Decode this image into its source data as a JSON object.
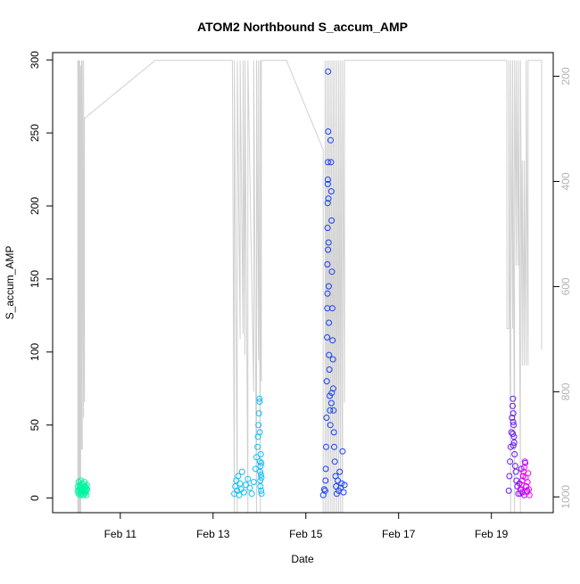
{
  "chart_data": {
    "type": "scatter",
    "title": "ATOM2 Northbound S_accum_AMP",
    "xlabel": "Date",
    "ylabel": "S_accum_AMP",
    "xlim": [
      "2018-02-09T13:00",
      "2018-02-20T08:00"
    ],
    "ylim": [
      -10,
      305
    ],
    "x_ticks": [
      {
        "date": "2018-02-11",
        "label": "Feb 11"
      },
      {
        "date": "2018-02-13",
        "label": "Feb 13"
      },
      {
        "date": "2018-02-15",
        "label": "Feb 15"
      },
      {
        "date": "2018-02-17",
        "label": "Feb 17"
      },
      {
        "date": "2018-02-19",
        "label": "Feb 19"
      }
    ],
    "y_ticks": [
      0,
      50,
      100,
      150,
      200,
      250,
      300
    ],
    "secondary_y": {
      "reversed": true,
      "ylim": [
        1030,
        155
      ],
      "ticks": [
        200,
        400,
        600,
        800,
        1000
      ],
      "color": "#bfbfbf"
    },
    "grid": false,
    "legend": "none",
    "series": [
      {
        "color": "#00f5a0",
        "points": [
          [
            "2018-02-10T02:00",
            5
          ],
          [
            "2018-02-10T02:10",
            8
          ],
          [
            "2018-02-10T02:20",
            3
          ],
          [
            "2018-02-10T02:30",
            11
          ],
          [
            "2018-02-10T02:40",
            6
          ],
          [
            "2018-02-10T02:50",
            4
          ],
          [
            "2018-02-10T03:00",
            9
          ],
          [
            "2018-02-10T03:10",
            7
          ],
          [
            "2018-02-10T03:20",
            2
          ],
          [
            "2018-02-10T03:30",
            12
          ],
          [
            "2018-02-10T03:40",
            5
          ],
          [
            "2018-02-10T03:50",
            8
          ],
          [
            "2018-02-10T04:00",
            3
          ],
          [
            "2018-02-10T04:10",
            6
          ],
          [
            "2018-02-10T04:20",
            10
          ],
          [
            "2018-02-10T04:30",
            4
          ],
          [
            "2018-02-10T04:40",
            7
          ],
          [
            "2018-02-10T04:50",
            2
          ],
          [
            "2018-02-10T05:00",
            9
          ],
          [
            "2018-02-10T05:10",
            5
          ],
          [
            "2018-02-10T05:20",
            6
          ],
          [
            "2018-02-10T05:30",
            11
          ],
          [
            "2018-02-10T05:40",
            3
          ],
          [
            "2018-02-10T05:50",
            8
          ],
          [
            "2018-02-10T06:00",
            4
          ],
          [
            "2018-02-10T06:10",
            7
          ],
          [
            "2018-02-10T06:20",
            5
          ],
          [
            "2018-02-10T06:30",
            2
          ],
          [
            "2018-02-10T06:40",
            9
          ],
          [
            "2018-02-10T06:50",
            6
          ]
        ]
      },
      {
        "color": "#11bff5",
        "points": [
          [
            "2018-02-13T11:00",
            3
          ],
          [
            "2018-02-13T11:30",
            8
          ],
          [
            "2018-02-13T12:00",
            12
          ],
          [
            "2018-02-13T12:30",
            5
          ],
          [
            "2018-02-13T13:00",
            15
          ],
          [
            "2018-02-13T13:30",
            2
          ],
          [
            "2018-02-13T14:00",
            10
          ],
          [
            "2018-02-13T14:30",
            6
          ],
          [
            "2018-02-13T15:00",
            18
          ],
          [
            "2018-02-13T16:00",
            4
          ],
          [
            "2018-02-13T17:00",
            9
          ],
          [
            "2018-02-13T18:00",
            13
          ],
          [
            "2018-02-13T19:00",
            7
          ],
          [
            "2018-02-13T20:00",
            3
          ],
          [
            "2018-02-13T21:00",
            11
          ],
          [
            "2018-02-13T22:00",
            20
          ],
          [
            "2018-02-13T22:30",
            28
          ],
          [
            "2018-02-13T23:00",
            35
          ],
          [
            "2018-02-13T23:15",
            42
          ],
          [
            "2018-02-13T23:30",
            50
          ],
          [
            "2018-02-13T23:45",
            58
          ],
          [
            "2018-02-14T00:00",
            68
          ],
          [
            "2018-02-14T00:05",
            66
          ],
          [
            "2018-02-14T00:10",
            45
          ],
          [
            "2018-02-14T00:15",
            25
          ],
          [
            "2018-02-14T00:20",
            18
          ],
          [
            "2018-02-14T00:25",
            12
          ],
          [
            "2018-02-14T00:30",
            8
          ],
          [
            "2018-02-14T00:35",
            22
          ],
          [
            "2018-02-14T00:40",
            30
          ],
          [
            "2018-02-14T00:45",
            16
          ],
          [
            "2018-02-14T00:50",
            5
          ],
          [
            "2018-02-14T00:55",
            24
          ],
          [
            "2018-02-14T01:00",
            14
          ],
          [
            "2018-02-14T01:05",
            3
          ]
        ]
      },
      {
        "color": "#1a40f5",
        "points": [
          [
            "2018-02-15T10:00",
            5
          ],
          [
            "2018-02-15T10:10",
            12
          ],
          [
            "2018-02-15T10:20",
            20
          ],
          [
            "2018-02-15T10:30",
            35
          ],
          [
            "2018-02-15T10:40",
            55
          ],
          [
            "2018-02-15T10:50",
            80
          ],
          [
            "2018-02-15T11:00",
            110
          ],
          [
            "2018-02-15T11:05",
            130
          ],
          [
            "2018-02-15T11:10",
            160
          ],
          [
            "2018-02-15T11:15",
            185
          ],
          [
            "2018-02-15T11:20",
            215
          ],
          [
            "2018-02-15T11:25",
            230
          ],
          [
            "2018-02-15T11:30",
            292
          ],
          [
            "2018-02-15T11:35",
            251
          ],
          [
            "2018-02-15T11:40",
            205
          ],
          [
            "2018-02-15T11:45",
            175
          ],
          [
            "2018-02-15T11:50",
            145
          ],
          [
            "2018-02-15T11:55",
            120
          ],
          [
            "2018-02-15T12:00",
            98
          ],
          [
            "2018-02-15T12:10",
            88
          ],
          [
            "2018-02-15T12:20",
            70
          ],
          [
            "2018-02-15T12:30",
            60
          ],
          [
            "2018-02-15T12:40",
            50
          ],
          [
            "2018-02-15T12:50",
            245
          ],
          [
            "2018-02-15T13:00",
            230
          ],
          [
            "2018-02-15T13:10",
            210
          ],
          [
            "2018-02-15T13:20",
            190
          ],
          [
            "2018-02-15T13:30",
            155
          ],
          [
            "2018-02-15T13:40",
            130
          ],
          [
            "2018-02-15T13:50",
            108
          ],
          [
            "2018-02-15T14:00",
            95
          ],
          [
            "2018-02-15T14:10",
            75
          ],
          [
            "2018-02-15T14:20",
            60
          ],
          [
            "2018-02-15T14:30",
            45
          ],
          [
            "2018-02-15T14:40",
            35
          ],
          [
            "2018-02-15T15:00",
            25
          ],
          [
            "2018-02-15T15:20",
            15
          ],
          [
            "2018-02-15T15:40",
            8
          ],
          [
            "2018-02-15T16:00",
            3
          ],
          [
            "2018-02-15T16:30",
            12
          ],
          [
            "2018-02-15T17:00",
            5
          ],
          [
            "2018-02-15T17:30",
            18
          ],
          [
            "2018-02-15T18:00",
            7
          ],
          [
            "2018-02-15T18:30",
            10
          ],
          [
            "2018-02-15T09:00",
            2
          ],
          [
            "2018-02-15T09:30",
            6
          ],
          [
            "2018-02-15T19:00",
            32
          ],
          [
            "2018-02-15T19:30",
            4
          ],
          [
            "2018-02-15T20:00",
            9
          ],
          [
            "2018-02-15T13:15",
            65
          ],
          [
            "2018-02-15T13:25",
            72
          ],
          [
            "2018-02-15T11:12",
            140
          ],
          [
            "2018-02-15T11:18",
            202
          ],
          [
            "2018-02-15T11:22",
            218
          ],
          [
            "2018-02-15T11:28",
            170
          ]
        ]
      },
      {
        "color": "#6a1af5",
        "points": [
          [
            "2018-02-19T09:00",
            5
          ],
          [
            "2018-02-19T09:20",
            15
          ],
          [
            "2018-02-19T09:40",
            25
          ],
          [
            "2018-02-19T10:00",
            35
          ],
          [
            "2018-02-19T10:20",
            45
          ],
          [
            "2018-02-19T10:40",
            55
          ],
          [
            "2018-02-19T11:00",
            63
          ],
          [
            "2018-02-19T11:10",
            68
          ],
          [
            "2018-02-19T11:20",
            58
          ],
          [
            "2018-02-19T11:30",
            50
          ],
          [
            "2018-02-19T11:40",
            42
          ],
          [
            "2018-02-19T11:50",
            38
          ],
          [
            "2018-02-19T12:00",
            30
          ],
          [
            "2018-02-19T12:20",
            22
          ],
          [
            "2018-02-19T12:40",
            18
          ],
          [
            "2018-02-19T13:00",
            12
          ],
          [
            "2018-02-19T13:30",
            8
          ],
          [
            "2018-02-19T14:00",
            3
          ],
          [
            "2018-02-19T14:30",
            10
          ],
          [
            "2018-02-19T15:00",
            6
          ],
          [
            "2018-02-19T15:30",
            20
          ],
          [
            "2018-02-19T16:00",
            4
          ],
          [
            "2018-02-19T16:30",
            15
          ],
          [
            "2018-02-19T17:00",
            2
          ],
          [
            "2018-02-19T17:30",
            24
          ],
          [
            "2018-02-19T18:00",
            8
          ],
          [
            "2018-02-19T18:30",
            5
          ],
          [
            "2018-02-19T11:05",
            44
          ],
          [
            "2018-02-19T11:15",
            52
          ],
          [
            "2018-02-19T11:25",
            36
          ]
        ]
      },
      {
        "color": "#f000f5",
        "points": [
          [
            "2018-02-19T15:00",
            3
          ],
          [
            "2018-02-19T15:20",
            6
          ],
          [
            "2018-02-19T15:40",
            9
          ],
          [
            "2018-02-19T16:00",
            12
          ],
          [
            "2018-02-19T16:20",
            15
          ],
          [
            "2018-02-19T16:40",
            18
          ],
          [
            "2018-02-19T17:00",
            21
          ],
          [
            "2018-02-19T17:20",
            25
          ],
          [
            "2018-02-19T17:40",
            14
          ],
          [
            "2018-02-19T18:00",
            8
          ],
          [
            "2018-02-19T18:20",
            4
          ],
          [
            "2018-02-19T18:40",
            11
          ],
          [
            "2018-02-19T19:00",
            17
          ],
          [
            "2018-02-19T19:20",
            6
          ],
          [
            "2018-02-19T19:40",
            2
          ]
        ]
      }
    ],
    "depth_trace": {
      "color": "#d0d0d0",
      "segments": [
        [
          "2018-02-10T02:00",
          1030
        ],
        [
          "2018-02-10T02:00",
          170
        ],
        [
          "2018-02-10T02:20",
          1030
        ],
        [
          "2018-02-10T02:20",
          170
        ],
        [
          "2018-02-10T02:40",
          1030
        ],
        [
          "2018-02-10T02:40",
          170
        ],
        [
          "2018-02-10T03:00",
          1030
        ],
        [
          "2018-02-10T03:00",
          170
        ],
        [
          "2018-02-10T03:30",
          1030
        ],
        [
          "2018-02-10T03:30",
          180
        ],
        [
          "2018-02-10T04:00",
          910
        ],
        [
          "2018-02-10T04:00",
          170
        ],
        [
          "2018-02-10T04:20",
          910
        ],
        [
          "2018-02-10T04:20",
          170
        ],
        [
          "2018-02-10T05:00",
          850
        ],
        [
          "2018-02-10T05:00",
          170
        ],
        [
          "2018-02-10T05:30",
          820
        ],
        [
          "2018-02-10T05:30",
          280
        ],
        [
          "2018-02-11T18:00",
          170
        ],
        [
          "2018-02-13T10:00",
          170
        ],
        [
          "2018-02-13T11:00",
          1030
        ],
        [
          "2018-02-13T11:00",
          170
        ],
        [
          "2018-02-13T12:30",
          1030
        ],
        [
          "2018-02-13T12:30",
          170
        ],
        [
          "2018-02-13T14:00",
          700
        ],
        [
          "2018-02-13T14:00",
          170
        ],
        [
          "2018-02-13T15:30",
          690
        ],
        [
          "2018-02-13T15:30",
          170
        ],
        [
          "2018-02-13T16:30",
          730
        ],
        [
          "2018-02-13T16:30",
          170
        ],
        [
          "2018-02-13T18:00",
          1030
        ],
        [
          "2018-02-13T18:00",
          170
        ],
        [
          "2018-02-13T21:00",
          800
        ],
        [
          "2018-02-13T21:00",
          170
        ],
        [
          "2018-02-13T22:30",
          1030
        ],
        [
          "2018-02-13T22:30",
          170
        ],
        [
          "2018-02-13T23:30",
          740
        ],
        [
          "2018-02-13T23:30",
          170
        ],
        [
          "2018-02-14T00:30",
          1030
        ],
        [
          "2018-02-14T00:30",
          170
        ],
        [
          "2018-02-14T01:00",
          780
        ],
        [
          "2018-02-14T01:00",
          170
        ],
        [
          "2018-02-14T14:00",
          170
        ],
        [
          "2018-02-15T09:00",
          340
        ],
        [
          "2018-02-15T09:00",
          1030
        ],
        [
          "2018-02-15T10:00",
          1030
        ],
        [
          "2018-02-15T10:00",
          170
        ],
        [
          "2018-02-15T11:00",
          1030
        ],
        [
          "2018-02-15T11:00",
          170
        ],
        [
          "2018-02-15T12:00",
          1030
        ],
        [
          "2018-02-15T12:00",
          170
        ],
        [
          "2018-02-15T13:00",
          1030
        ],
        [
          "2018-02-15T13:00",
          170
        ],
        [
          "2018-02-15T14:00",
          1030
        ],
        [
          "2018-02-15T14:00",
          170
        ],
        [
          "2018-02-15T15:00",
          1030
        ],
        [
          "2018-02-15T15:00",
          170
        ],
        [
          "2018-02-15T16:00",
          1030
        ],
        [
          "2018-02-15T16:00",
          170
        ],
        [
          "2018-02-15T17:00",
          1030
        ],
        [
          "2018-02-15T17:00",
          170
        ],
        [
          "2018-02-15T18:00",
          1030
        ],
        [
          "2018-02-15T18:00",
          170
        ],
        [
          "2018-02-15T19:00",
          1030
        ],
        [
          "2018-02-15T19:00",
          170
        ],
        [
          "2018-02-15T20:00",
          820
        ],
        [
          "2018-02-15T20:00",
          170
        ],
        [
          "2018-02-19T08:00",
          170
        ],
        [
          "2018-02-19T08:00",
          680
        ],
        [
          "2018-02-19T09:00",
          680
        ],
        [
          "2018-02-19T09:00",
          170
        ],
        [
          "2018-02-19T10:00",
          1030
        ],
        [
          "2018-02-19T10:00",
          170
        ],
        [
          "2018-02-19T11:00",
          680
        ],
        [
          "2018-02-19T11:00",
          170
        ],
        [
          "2018-02-19T12:00",
          1030
        ],
        [
          "2018-02-19T12:00",
          170
        ],
        [
          "2018-02-19T13:00",
          560
        ],
        [
          "2018-02-19T13:00",
          170
        ],
        [
          "2018-02-19T14:00",
          560
        ],
        [
          "2018-02-19T14:00",
          170
        ],
        [
          "2018-02-19T15:00",
          1030
        ],
        [
          "2018-02-19T15:00",
          170
        ],
        [
          "2018-02-19T16:00",
          750
        ],
        [
          "2018-02-19T16:00",
          360
        ],
        [
          "2018-02-19T17:00",
          750
        ],
        [
          "2018-02-19T17:00",
          360
        ],
        [
          "2018-02-19T18:00",
          750
        ],
        [
          "2018-02-19T18:00",
          170
        ],
        [
          "2018-02-19T19:00",
          750
        ],
        [
          "2018-02-19T19:00",
          170
        ],
        [
          "2018-02-20T02:00",
          170
        ],
        [
          "2018-02-20T02:00",
          720
        ]
      ]
    }
  }
}
